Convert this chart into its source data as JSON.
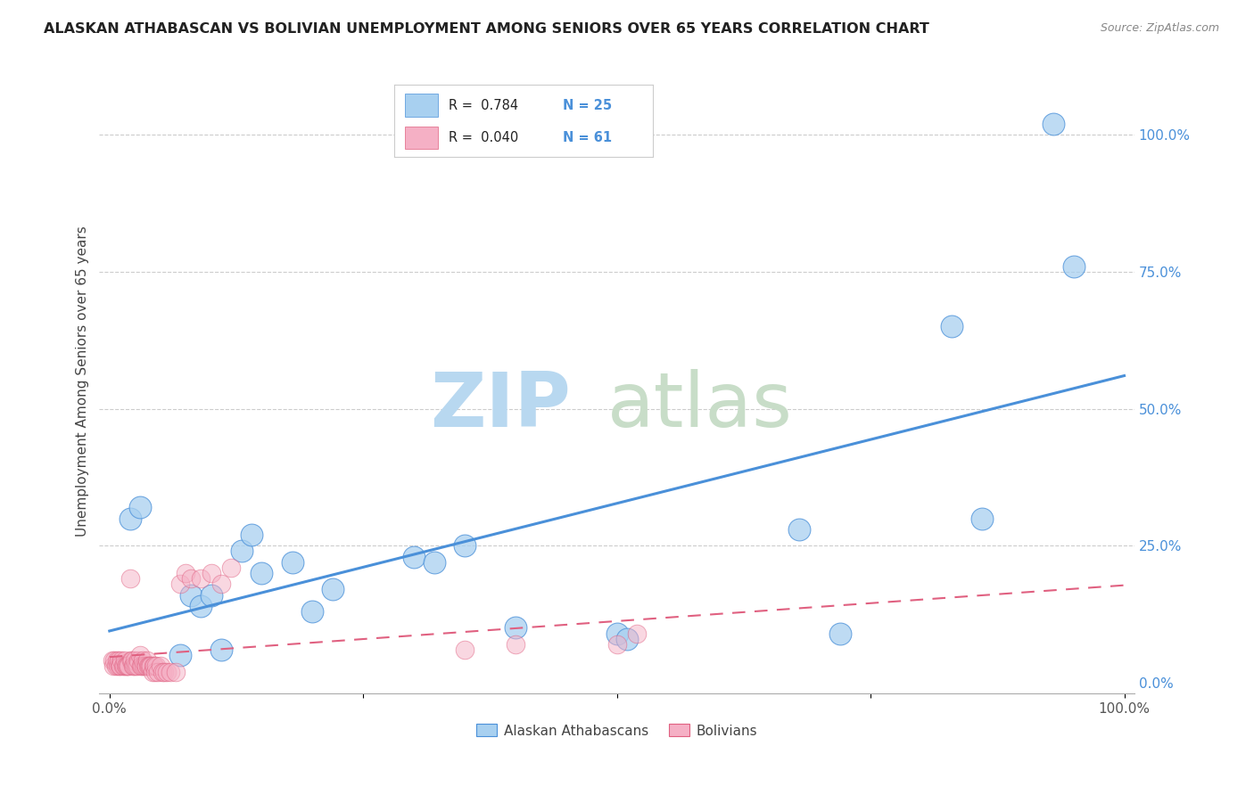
{
  "title": "ALASKAN ATHABASCAN VS BOLIVIAN UNEMPLOYMENT AMONG SENIORS OVER 65 YEARS CORRELATION CHART",
  "source": "Source: ZipAtlas.com",
  "ylabel": "Unemployment Among Seniors over 65 years",
  "legend_blue_r": "R =  0.784",
  "legend_blue_n": "N = 25",
  "legend_pink_r": "R =  0.040",
  "legend_pink_n": "N = 61",
  "legend_label_blue": "Alaskan Athabascans",
  "legend_label_pink": "Bolivians",
  "blue_color": "#a8d0f0",
  "blue_line_color": "#4a90d9",
  "pink_color": "#f5b0c5",
  "pink_line_color": "#e06080",
  "blue_scatter_x": [
    0.02,
    0.03,
    0.07,
    0.08,
    0.09,
    0.1,
    0.11,
    0.13,
    0.14,
    0.15,
    0.18,
    0.2,
    0.22,
    0.3,
    0.32,
    0.35,
    0.4,
    0.5,
    0.51,
    0.68,
    0.72,
    0.83,
    0.86,
    0.93,
    0.95
  ],
  "blue_scatter_y": [
    0.3,
    0.32,
    0.05,
    0.16,
    0.14,
    0.16,
    0.06,
    0.24,
    0.27,
    0.2,
    0.22,
    0.13,
    0.17,
    0.23,
    0.22,
    0.25,
    0.1,
    0.09,
    0.08,
    0.28,
    0.09,
    0.65,
    0.3,
    1.02,
    0.76
  ],
  "pink_scatter_x": [
    0.003,
    0.004,
    0.005,
    0.006,
    0.007,
    0.008,
    0.009,
    0.01,
    0.011,
    0.012,
    0.013,
    0.014,
    0.015,
    0.016,
    0.017,
    0.018,
    0.019,
    0.02,
    0.021,
    0.022,
    0.023,
    0.024,
    0.025,
    0.026,
    0.027,
    0.028,
    0.03,
    0.031,
    0.032,
    0.033,
    0.034,
    0.035,
    0.036,
    0.037,
    0.038,
    0.039,
    0.04,
    0.041,
    0.042,
    0.043,
    0.044,
    0.045,
    0.046,
    0.048,
    0.05,
    0.052,
    0.054,
    0.056,
    0.06,
    0.065,
    0.07,
    0.075,
    0.08,
    0.09,
    0.1,
    0.11,
    0.12,
    0.35,
    0.4,
    0.5,
    0.52
  ],
  "pink_scatter_y": [
    0.04,
    0.03,
    0.04,
    0.03,
    0.04,
    0.03,
    0.04,
    0.03,
    0.03,
    0.04,
    0.03,
    0.03,
    0.04,
    0.03,
    0.03,
    0.03,
    0.03,
    0.19,
    0.04,
    0.04,
    0.03,
    0.03,
    0.04,
    0.03,
    0.03,
    0.04,
    0.05,
    0.03,
    0.03,
    0.04,
    0.03,
    0.03,
    0.03,
    0.04,
    0.03,
    0.03,
    0.03,
    0.03,
    0.02,
    0.03,
    0.03,
    0.02,
    0.03,
    0.02,
    0.03,
    0.02,
    0.02,
    0.02,
    0.02,
    0.02,
    0.18,
    0.2,
    0.19,
    0.19,
    0.2,
    0.18,
    0.21,
    0.06,
    0.07,
    0.07,
    0.09
  ],
  "right_yticks": [
    0.0,
    0.25,
    0.5,
    0.75,
    1.0
  ],
  "right_yticklabels": [
    "0.0%",
    "25.0%",
    "50.0%",
    "75.0%",
    "100.0%"
  ],
  "ylim": [
    -0.02,
    1.12
  ],
  "xlim": [
    -0.01,
    1.01
  ],
  "background_color": "#ffffff",
  "grid_color": "#cccccc"
}
